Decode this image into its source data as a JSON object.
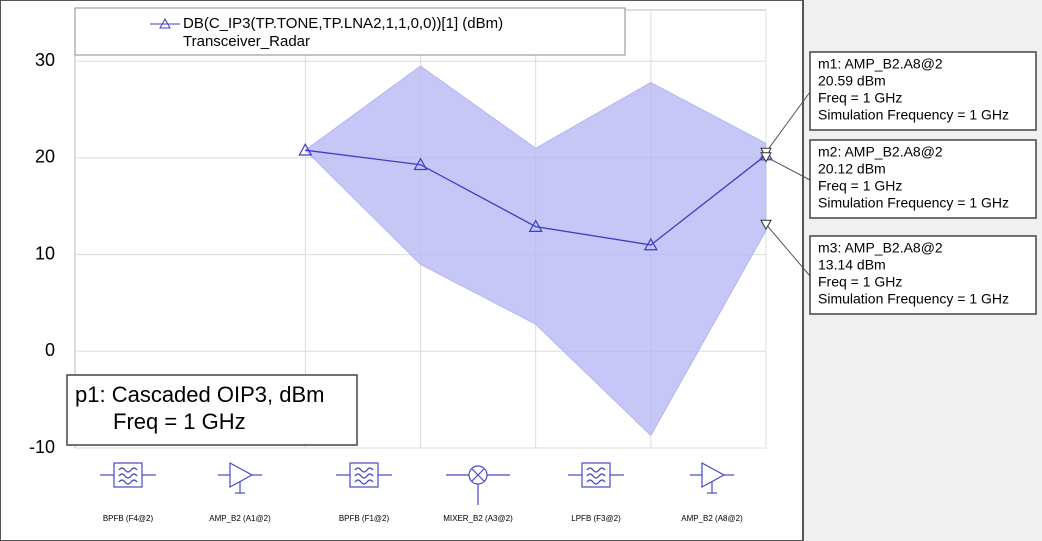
{
  "chart_data": {
    "type": "line",
    "legend": [
      "DB(C_IP3(TP.TONE,TP.LNA2,1,1,0,0))[1] (dBm)",
      "Transceiver_Radar"
    ],
    "annotation": [
      "p1: Cascaded OIP3, dBm",
      "Freq = 1 GHz"
    ],
    "x": [
      2,
      3,
      4,
      5,
      6
    ],
    "xlim": [
      0,
      6
    ],
    "series": [
      {
        "color": "#3c3cc8",
        "values": [
          20.8,
          19.3,
          12.9,
          11.0,
          20.3
        ]
      }
    ],
    "envelope": {
      "color": "#b4b4f4",
      "max": [
        20.8,
        29.5,
        21.0,
        27.8,
        21.5
      ],
      "min": [
        20.8,
        9.0,
        2.8,
        -8.7,
        12.5
      ]
    },
    "ylim": [
      -10,
      35.3
    ],
    "yticks": [
      30,
      20,
      10,
      0,
      -10
    ],
    "grid": true,
    "components": [
      "BPFB (F4@2)",
      "AMP_B2 (A1@2)",
      "BPFB (F1@2)",
      "MIXER_B2 (A3@2)",
      "LPFB (F3@2)",
      "AMP_B2 (A8@2)"
    ],
    "markers": [
      {
        "name": "m1: AMP_B2.A8@2",
        "x": 6,
        "value": 20.59,
        "value_label": "20.59 dBm",
        "freq": "Freq = 1 GHz",
        "sim": "Simulation Frequency = 1 GHz"
      },
      {
        "name": "m2: AMP_B2.A8@2",
        "x": 6,
        "value": 20.12,
        "value_label": "20.12 dBm",
        "freq": "Freq = 1 GHz",
        "sim": "Simulation Frequency = 1 GHz"
      },
      {
        "name": "m3: AMP_B2.A8@2",
        "x": 6,
        "value": 13.14,
        "value_label": "13.14 dBm",
        "freq": "Freq = 1 GHz",
        "sim": "Simulation Frequency = 1 GHz"
      }
    ]
  }
}
